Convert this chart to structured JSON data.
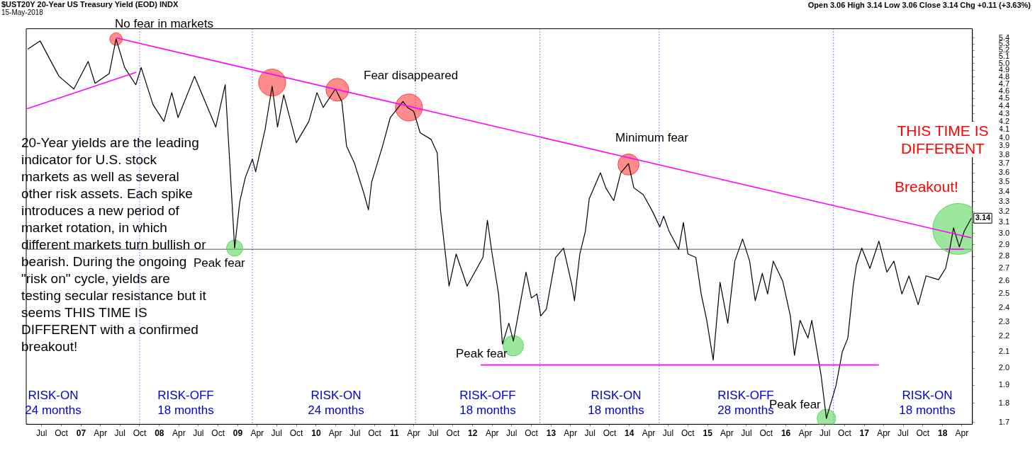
{
  "chart_data": {
    "type": "line",
    "title": "$UST20Y 20-Year US Treasury Yield (EOD) INDX",
    "subtitle": "15-May-2018",
    "xlim": [
      "2006-04-20",
      "2018-05-20"
    ],
    "xticks": [
      {
        "value": "2006-07-01",
        "label": "Jul"
      },
      {
        "value": "2006-10-01",
        "label": "Oct"
      },
      {
        "value": "2007-01-01",
        "label": "07"
      },
      {
        "value": "2007-04-01",
        "label": "Apr"
      },
      {
        "value": "2007-07-01",
        "label": "Jul"
      },
      {
        "value": "2007-10-01",
        "label": "Oct"
      },
      {
        "value": "2008-01-01",
        "label": "08"
      },
      {
        "value": "2008-04-01",
        "label": "Apr"
      },
      {
        "value": "2008-07-01",
        "label": "Jul"
      },
      {
        "value": "2008-10-01",
        "label": "Oct"
      },
      {
        "value": "2009-01-01",
        "label": "09"
      },
      {
        "value": "2009-04-01",
        "label": "Apr"
      },
      {
        "value": "2009-07-01",
        "label": "Jul"
      },
      {
        "value": "2009-10-01",
        "label": "Oct"
      },
      {
        "value": "2010-01-01",
        "label": "10"
      },
      {
        "value": "2010-04-01",
        "label": "Apr"
      },
      {
        "value": "2010-07-01",
        "label": "Jul"
      },
      {
        "value": "2010-10-01",
        "label": "Oct"
      },
      {
        "value": "2011-01-01",
        "label": "11"
      },
      {
        "value": "2011-04-01",
        "label": "Apr"
      },
      {
        "value": "2011-07-01",
        "label": "Jul"
      },
      {
        "value": "2011-10-01",
        "label": "Oct"
      },
      {
        "value": "2012-01-01",
        "label": "12"
      },
      {
        "value": "2012-04-01",
        "label": "Apr"
      },
      {
        "value": "2012-07-01",
        "label": "Jul"
      },
      {
        "value": "2012-10-01",
        "label": "Oct"
      },
      {
        "value": "2013-01-01",
        "label": "13"
      },
      {
        "value": "2013-04-01",
        "label": "Apr"
      },
      {
        "value": "2013-07-01",
        "label": "Jul"
      },
      {
        "value": "2013-10-01",
        "label": "Oct"
      },
      {
        "value": "2014-01-01",
        "label": "14"
      },
      {
        "value": "2014-04-01",
        "label": "Apr"
      },
      {
        "value": "2014-07-01",
        "label": "Jul"
      },
      {
        "value": "2014-10-01",
        "label": "Oct"
      },
      {
        "value": "2015-01-01",
        "label": "15"
      },
      {
        "value": "2015-04-01",
        "label": "Apr"
      },
      {
        "value": "2015-07-01",
        "label": "Jul"
      },
      {
        "value": "2015-10-01",
        "label": "Oct"
      },
      {
        "value": "2016-01-01",
        "label": "16"
      },
      {
        "value": "2016-04-01",
        "label": "Apr"
      },
      {
        "value": "2016-07-01",
        "label": "Jul"
      },
      {
        "value": "2016-10-01",
        "label": "Oct"
      },
      {
        "value": "2017-01-01",
        "label": "17"
      },
      {
        "value": "2017-04-01",
        "label": "Apr"
      },
      {
        "value": "2017-07-01",
        "label": "Jul"
      },
      {
        "value": "2017-10-01",
        "label": "Oct"
      },
      {
        "value": "2018-01-01",
        "label": "18"
      },
      {
        "value": "2018-04-01",
        "label": "Apr"
      }
    ],
    "log": "y",
    "ylim": [
      1.69,
      5.55
    ],
    "yticks": [
      1.7,
      1.8,
      1.9,
      {
        "value": 2.0,
        "label": "2.0"
      },
      2.1,
      2.2,
      2.3,
      2.4,
      2.5,
      2.6,
      2.7,
      2.8,
      2.9,
      {
        "value": 3.0,
        "label": "3.0"
      },
      3.1,
      3.2,
      3.3,
      3.4,
      3.5,
      3.6,
      3.7,
      3.8,
      3.9,
      {
        "value": 4.0,
        "label": "4.0"
      },
      4.1,
      4.2,
      4.3,
      4.4,
      4.5,
      4.6,
      4.7,
      4.8,
      4.9,
      {
        "value": 5.0,
        "label": "5.0"
      },
      5.1,
      5.2,
      5.3,
      5.4
    ],
    "grid": false,
    "legend": false,
    "line_style": "solid",
    "series": [
      {
        "color": "#000000",
        "x": [
          "2006-04-27",
          "2006-06-24",
          "2006-08-07",
          "2006-09-20",
          "2006-11-28",
          "2007-02-03",
          "2007-03-07",
          "2007-05-12",
          "2007-06-13",
          "2007-07-23",
          "2007-09-13",
          "2007-10-08",
          "2007-12-02",
          "2008-01-22",
          "2008-02-28",
          "2008-03-28",
          "2008-06-13",
          "2008-09-20",
          "2008-11-03",
          "2008-11-25",
          "2008-12-17",
          "2009-01-10",
          "2009-02-05",
          "2009-03-10",
          "2009-03-25",
          "2009-05-08",
          "2009-06-10",
          "2009-07-05",
          "2009-08-03",
          "2009-10-01",
          "2009-11-28",
          "2010-01-05",
          "2010-02-03",
          "2010-04-01",
          "2010-05-01",
          "2010-05-23",
          "2010-06-28",
          "2010-08-11",
          "2010-09-02",
          "2010-09-17",
          "2010-11-07",
          "2010-12-13",
          "2011-02-10",
          "2011-03-03",
          "2011-04-01",
          "2011-05-01",
          "2011-06-21",
          "2011-07-20",
          "2011-08-04",
          "2011-08-19",
          "2011-09-13",
          "2011-10-16",
          "2011-12-06",
          "2012-02-18",
          "2012-03-10",
          "2012-04-01",
          "2012-05-01",
          "2012-05-19",
          "2012-06-18",
          "2012-07-09",
          "2012-09-06",
          "2012-10-01",
          "2012-10-27",
          "2012-11-14",
          "2012-12-10",
          "2013-01-22",
          "2013-02-28",
          "2013-04-09",
          "2013-04-20",
          "2013-05-15",
          "2013-06-10",
          "2013-06-28",
          "2013-08-19",
          "2013-09-13",
          "2013-10-20",
          "2013-11-22",
          "2013-12-28",
          "2014-01-22",
          "2014-03-07",
          "2014-04-20",
          "2014-05-23",
          "2014-06-10",
          "2014-07-05",
          "2014-08-19",
          "2014-09-10",
          "2014-10-01",
          "2014-11-07",
          "2014-12-02",
          "2014-12-28",
          "2015-01-27",
          "2015-02-28",
          "2015-04-05",
          "2015-05-08",
          "2015-06-13",
          "2015-07-16",
          "2015-08-11",
          "2015-09-13",
          "2015-10-08",
          "2015-11-03",
          "2015-12-17",
          "2016-01-22",
          "2016-02-10",
          "2016-03-07",
          "2016-04-13",
          "2016-05-01",
          "2016-06-13",
          "2016-07-08",
          "2016-08-22",
          "2016-09-20",
          "2016-10-16",
          "2016-11-10",
          "2016-11-25",
          "2016-12-20",
          "2017-01-27",
          "2017-03-10",
          "2017-04-16",
          "2017-05-19",
          "2017-06-25",
          "2017-07-28",
          "2017-09-09",
          "2017-10-16",
          "2017-12-13",
          "2018-01-15",
          "2018-02-02",
          "2018-02-21",
          "2018-03-20",
          "2018-04-12",
          "2018-05-15"
        ],
        "values": [
          5.22,
          5.35,
          5.07,
          4.81,
          4.63,
          5.03,
          4.71,
          4.85,
          5.38,
          4.94,
          4.69,
          4.94,
          4.42,
          4.2,
          4.58,
          4.25,
          4.81,
          4.13,
          4.69,
          3.68,
          2.87,
          3.3,
          3.55,
          3.75,
          3.61,
          4.1,
          4.67,
          4.13,
          4.55,
          3.94,
          4.2,
          4.58,
          4.38,
          4.63,
          4.46,
          3.9,
          3.71,
          3.39,
          3.22,
          3.5,
          3.9,
          4.25,
          4.46,
          4.38,
          4.33,
          4.06,
          3.98,
          3.82,
          3.22,
          2.95,
          2.56,
          2.82,
          2.56,
          2.79,
          3.12,
          2.82,
          2.5,
          2.15,
          2.29,
          2.17,
          2.67,
          2.47,
          2.5,
          2.34,
          2.39,
          2.79,
          2.87,
          2.56,
          2.45,
          2.82,
          3.02,
          3.33,
          3.6,
          3.44,
          3.31,
          3.6,
          3.7,
          3.44,
          3.37,
          3.2,
          3.06,
          3.16,
          3.02,
          2.86,
          3.1,
          2.82,
          2.79,
          2.5,
          2.31,
          2.05,
          2.59,
          2.29,
          2.76,
          2.95,
          2.76,
          2.45,
          2.66,
          2.5,
          2.76,
          2.6,
          2.34,
          2.08,
          2.31,
          2.19,
          2.31,
          1.96,
          1.72,
          1.9,
          2.1,
          2.19,
          2.56,
          2.73,
          2.87,
          2.7,
          2.93,
          2.67,
          2.76,
          2.5,
          2.64,
          2.42,
          2.64,
          2.61,
          2.7,
          2.85,
          3.05,
          2.88,
          3.02,
          3.14
        ]
      },
      {
        "color": "#ff00ff",
        "x": [
          "2007-06-13",
          "2018-05-15"
        ],
        "values": [
          5.4,
          2.96
        ]
      },
      {
        "color": "#ff00ff",
        "x": [
          "2006-04-20",
          "2007-09-16"
        ],
        "values": [
          4.36,
          4.87
        ]
      },
      {
        "color": "#ff00ff",
        "x": [
          "2012-02-08",
          "2017-03-10"
        ],
        "values": [
          2.02,
          2.02
        ]
      },
      {
        "color": "#ff00ff",
        "x": [
          "2018-01-15",
          "2018-04-10"
        ],
        "values": [
          2.86,
          2.86
        ]
      },
      {
        "type": "bubble",
        "marker": "circle",
        "color": "#ff4040",
        "x": [
          "2007-06-13",
          "2009-06-10",
          "2010-04-10",
          "2011-03-10",
          "2013-12-28"
        ],
        "values": [
          5.38,
          4.72,
          4.62,
          4.38,
          3.69
        ],
        "sizes": [
          0.06,
          0.28,
          0.2,
          0.28,
          0.17
        ]
      },
      {
        "type": "bubble",
        "marker": "circle",
        "color": "#5cd65c",
        "x": [
          "2008-12-17",
          "2012-07-09",
          "2016-07-08",
          "2018-03-15"
        ],
        "values": [
          2.87,
          2.14,
          1.72,
          3.04
        ],
        "sizes": [
          0.1,
          0.16,
          0.13,
          1
        ]
      }
    ],
    "ref_lines": [
      {
        "axis": "y",
        "value": 2.86,
        "color": "#555555",
        "line_style": "solid"
      },
      {
        "axis": "x",
        "value": "2007-10-01",
        "color": "#0000ff",
        "line_style": "dotted"
      },
      {
        "axis": "x",
        "value": "2009-03-10",
        "color": "#0000ff",
        "line_style": "dotted"
      },
      {
        "axis": "x",
        "value": "2011-04-10",
        "color": "#0000ff",
        "line_style": "dotted"
      },
      {
        "axis": "x",
        "value": "2012-11-10",
        "color": "#0000ff",
        "line_style": "dotted"
      },
      {
        "axis": "x",
        "value": "2014-05-20",
        "color": "#0000ff",
        "line_style": "dotted"
      },
      {
        "axis": "x",
        "value": "2016-08-10",
        "color": "#0000ff",
        "line_style": "dotted"
      }
    ],
    "annotations": [
      "Open 3.06 High 3.14 Low 3.06 Close 3.14 Chg +0.11 (+3.63%)",
      "20-Year yields are the leading indicator for U.S. stock markets as well as several other risk assets. Each spike introduces a new period of market rotation, in which different markets turn bullish or bearish. During the ongoing \"risk on\" cycle, yields are testing secular resistance but it seems THIS TIME IS DIFFERENT with a confirmed breakout!",
      "THIS TIME IS DIFFERENT",
      "No fear in markets",
      "Fear disappeared",
      "Minimum fear",
      "Peak fear",
      "Peak fear",
      "Peak fear",
      "Breakout!",
      "RISK-ON\n24 months",
      "RISK-OFF\n18 months",
      "RISK-ON\n24 months",
      "RISK-OFF\n18 months",
      "RISK-ON\n18 months",
      "RISK-OFF\n28 months",
      "RISK-ON\n18 months",
      {
        "text": "3.14",
        "x": "2018-05-15",
        "y": 3.14
      }
    ]
  }
}
